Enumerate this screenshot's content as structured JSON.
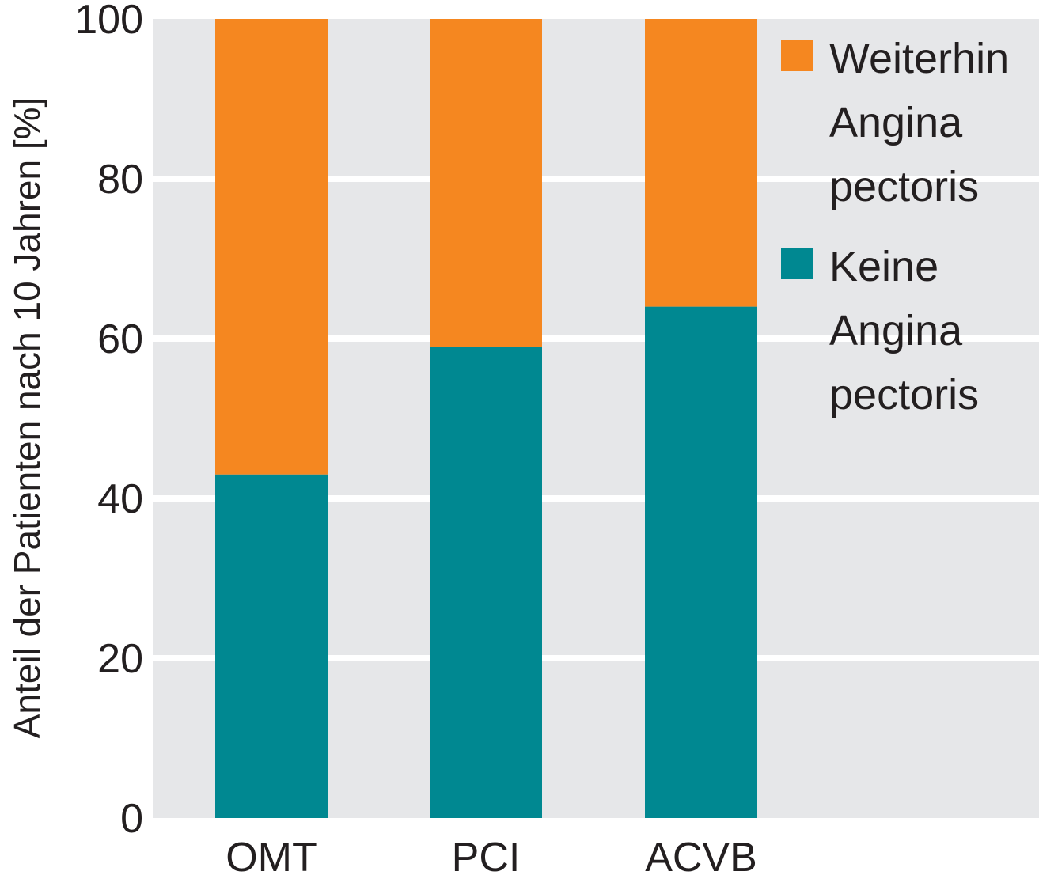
{
  "chart_data": {
    "type": "bar",
    "stacked": true,
    "categories": [
      "OMT",
      "PCI",
      "ACVB"
    ],
    "series": [
      {
        "name": "Keine Angina pectoris",
        "legend_lines": [
          "Keine",
          "Angina",
          "pectoris"
        ],
        "color": "#008891",
        "values": [
          43,
          59,
          64
        ]
      },
      {
        "name": "Weiterhin Angina pectoris",
        "legend_lines": [
          "Weiterhin",
          "Angina",
          "pectoris"
        ],
        "color": "#f58720",
        "values": [
          57,
          41,
          36
        ]
      }
    ],
    "ylabel": "Anteil der Patienten nach 10 Jahren [%]",
    "xlabel": "",
    "ylim": [
      0,
      100
    ],
    "yticks": [
      0,
      20,
      40,
      60,
      80,
      100
    ],
    "grid": true,
    "legend": "right",
    "background_color": "#e6e7e9",
    "grid_color": "#ffffff"
  }
}
